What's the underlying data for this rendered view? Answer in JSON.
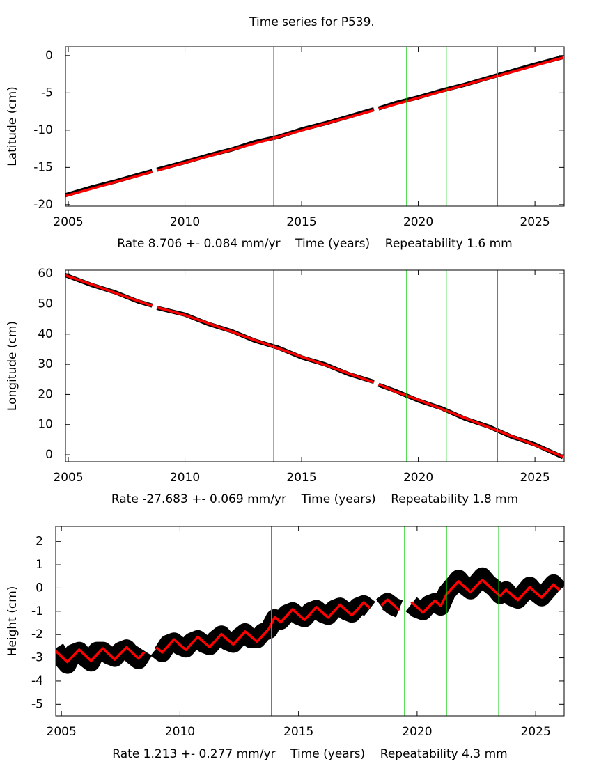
{
  "chart_data": [
    {
      "type": "line",
      "title": "Time series for P539.",
      "xlabel": "Rate 8.706 +- 0.084 mm/yr    Time (years)    Repeatability 1.6 mm",
      "ylabel": "Latitude (cm)",
      "x": [
        2004.8,
        2006,
        2007,
        2008,
        2008.6,
        2008.7,
        2008.8,
        2010,
        2011,
        2012,
        2013,
        2014,
        2015,
        2016,
        2017,
        2018.1,
        2018.2,
        2018.3,
        2019,
        2020,
        2021,
        2022,
        2023,
        2024,
        2025,
        2026.2
      ],
      "series": [
        {
          "color": "#000000",
          "values": [
            -18.8,
            -17.7,
            -16.9,
            -16.0,
            -15.5,
            null,
            -15.3,
            -14.3,
            -13.4,
            -12.6,
            -11.6,
            -10.9,
            -9.9,
            -9.1,
            -8.2,
            -7.2,
            null,
            -7.1,
            -6.4,
            -5.6,
            -4.7,
            -3.9,
            -3.0,
            -2.1,
            -1.2,
            -0.2
          ]
        },
        {
          "color": "#ff0000",
          "values": [
            -18.9,
            -17.86,
            -16.99,
            -16.12,
            -15.59,
            null,
            -15.42,
            -14.38,
            -13.51,
            -12.64,
            -11.77,
            -10.92,
            -10.03,
            -9.16,
            -8.29,
            -7.33,
            null,
            -7.16,
            -6.55,
            -5.68,
            -4.81,
            -3.94,
            -3.07,
            -2.2,
            -1.33,
            -0.28
          ]
        }
      ],
      "xlim": [
        2004.88,
        2026.25
      ],
      "ylim": [
        -20.2,
        1.2
      ],
      "xticks": [
        2005,
        2010,
        2015,
        2020,
        2025
      ],
      "yticks": [
        -20,
        -15,
        -10,
        -5,
        0
      ],
      "vlines": [
        2013.8,
        2019.5,
        2021.2,
        2023.4
      ],
      "vline_color": "#00cc00"
    },
    {
      "type": "line",
      "xlabel": "Rate -27.683 +- 0.069 mm/yr    Time (years)    Repeatability 1.8 mm",
      "ylabel": "Longitude (cm)",
      "x": [
        2004.8,
        2006,
        2007,
        2008,
        2008.6,
        2008.7,
        2008.8,
        2010,
        2011,
        2012,
        2013,
        2014,
        2015,
        2016,
        2017,
        2018.1,
        2018.2,
        2018.3,
        2019,
        2020,
        2021,
        2022,
        2023,
        2024,
        2025,
        2026.2
      ],
      "series": [
        {
          "color": "#000000",
          "values": [
            59.8,
            56.3,
            53.9,
            50.8,
            49.5,
            null,
            48.7,
            46.5,
            43.4,
            41.0,
            37.8,
            35.5,
            32.3,
            30.0,
            26.8,
            24.2,
            null,
            23.2,
            21.2,
            18.0,
            15.4,
            12.0,
            9.4,
            6.0,
            3.4,
            -0.8
          ]
        },
        {
          "color": "#ff0000",
          "values": [
            59.7,
            56.5,
            53.7,
            51.0,
            49.4,
            null,
            48.9,
            46.3,
            43.6,
            40.8,
            38.0,
            35.3,
            32.5,
            29.8,
            27.0,
            24.0,
            null,
            23.4,
            21.0,
            18.2,
            15.2,
            12.2,
            9.2,
            6.2,
            3.2,
            -0.6
          ]
        }
      ],
      "xlim": [
        2004.88,
        2026.25
      ],
      "ylim": [
        -2.3,
        61.2
      ],
      "xticks": [
        2005,
        2010,
        2015,
        2020,
        2025
      ],
      "yticks": [
        0,
        10,
        20,
        30,
        40,
        50,
        60
      ],
      "vlines": [
        2013.8,
        2019.5,
        2021.2,
        2023.4
      ],
      "vline_color": "#00cc00"
    },
    {
      "type": "line",
      "xlabel": "Rate 1.213 +- 0.277 mm/yr    Time (years)    Repeatability 4.3 mm",
      "ylabel": "Height (cm)",
      "x": [
        2004.75,
        2005,
        2005.25,
        2005.5,
        2005.75,
        2006,
        2006.25,
        2006.5,
        2006.75,
        2007,
        2007.25,
        2007.5,
        2007.75,
        2008,
        2008.25,
        2008.5,
        2008.75,
        2009,
        2009.25,
        2009.5,
        2009.75,
        2010,
        2010.25,
        2010.5,
        2010.75,
        2011,
        2011.25,
        2011.5,
        2011.75,
        2012,
        2012.25,
        2012.5,
        2012.75,
        2013,
        2013.25,
        2013.5,
        2013.75,
        2014,
        2014.25,
        2014.5,
        2014.75,
        2015,
        2015.25,
        2015.5,
        2015.75,
        2016,
        2016.25,
        2016.5,
        2016.75,
        2017,
        2017.25,
        2017.5,
        2017.75,
        2018,
        2018.25,
        2018.5,
        2018.75,
        2019,
        2019.25,
        2019.5,
        2019.75,
        2020,
        2020.25,
        2020.5,
        2020.75,
        2021,
        2021.25,
        2021.5,
        2021.75,
        2022,
        2022.25,
        2022.5,
        2022.75,
        2023,
        2023.25,
        2023.5,
        2023.75,
        2024,
        2024.25,
        2024.5,
        2024.75,
        2025,
        2025.25,
        2025.5,
        2025.75,
        2026
      ],
      "series": [
        {
          "color": "#000000",
          "values": [
            -2.6,
            -3.0,
            -3.3,
            -2.8,
            -2.7,
            -3.0,
            -3.2,
            -2.7,
            -2.7,
            -2.9,
            -3.0,
            -2.7,
            -2.6,
            -2.9,
            -3.1,
            -2.7,
            null,
            -2.6,
            -2.8,
            -2.4,
            -2.3,
            -2.5,
            -2.6,
            -2.3,
            -2.2,
            -2.4,
            -2.5,
            -2.2,
            -2.0,
            -2.3,
            -2.4,
            -2.1,
            -1.9,
            -2.2,
            -2.2,
            -1.9,
            -1.8,
            -1.3,
            -1.4,
            -1.1,
            -1.0,
            -1.2,
            -1.3,
            -1.0,
            -0.9,
            -1.1,
            -1.2,
            -0.9,
            -0.8,
            -1.0,
            -1.1,
            -0.8,
            -0.7,
            -0.9,
            null,
            -0.8,
            -0.6,
            -0.8,
            -0.9,
            null,
            -0.7,
            -0.9,
            -1.0,
            -0.7,
            -0.6,
            -0.8,
            -0.2,
            0.1,
            0.4,
            0.1,
            -0.1,
            0.2,
            0.5,
            0.2,
            0.0,
            -0.3,
            -0.1,
            -0.4,
            -0.5,
            -0.2,
            0.1,
            -0.2,
            -0.4,
            -0.1,
            0.2,
            -0.1
          ]
        },
        {
          "color": "#ff0000",
          "values": [
            -2.7,
            -2.94,
            -3.18,
            -2.91,
            -2.65,
            -2.89,
            -3.13,
            -2.86,
            -2.6,
            -2.84,
            -3.08,
            -2.81,
            -2.55,
            -2.79,
            -3.03,
            -2.76,
            null,
            -2.55,
            -2.77,
            -2.49,
            -2.21,
            -2.44,
            -2.66,
            -2.38,
            -2.1,
            -2.32,
            -2.54,
            -2.26,
            -1.98,
            -2.21,
            -2.43,
            -2.15,
            -1.87,
            -2.09,
            -2.31,
            -2.03,
            -1.75,
            -1.25,
            -1.47,
            -1.2,
            -0.92,
            -1.15,
            -1.37,
            -1.1,
            -0.82,
            -1.05,
            -1.27,
            -1.0,
            -0.72,
            -0.95,
            -1.17,
            -0.9,
            -0.62,
            -0.85,
            null,
            -0.75,
            -0.5,
            -0.72,
            -0.96,
            null,
            -0.6,
            -0.82,
            -1.06,
            -0.8,
            -0.54,
            -0.77,
            -0.25,
            0.02,
            0.29,
            0.05,
            -0.18,
            0.09,
            0.35,
            0.12,
            -0.11,
            -0.35,
            -0.07,
            -0.3,
            -0.52,
            -0.24,
            0.04,
            -0.19,
            -0.41,
            -0.13,
            0.15,
            -0.08
          ]
        }
      ],
      "xlim": [
        2004.76,
        2026.2
      ],
      "ylim": [
        -5.5,
        2.65
      ],
      "xticks": [
        2005,
        2010,
        2015,
        2020,
        2025
      ],
      "yticks": [
        -5,
        -4,
        -3,
        -2,
        -1,
        0,
        1,
        2
      ],
      "vlines": [
        2013.85,
        2019.47,
        2021.24,
        2023.44
      ],
      "vline_color": "#00cc00"
    }
  ]
}
